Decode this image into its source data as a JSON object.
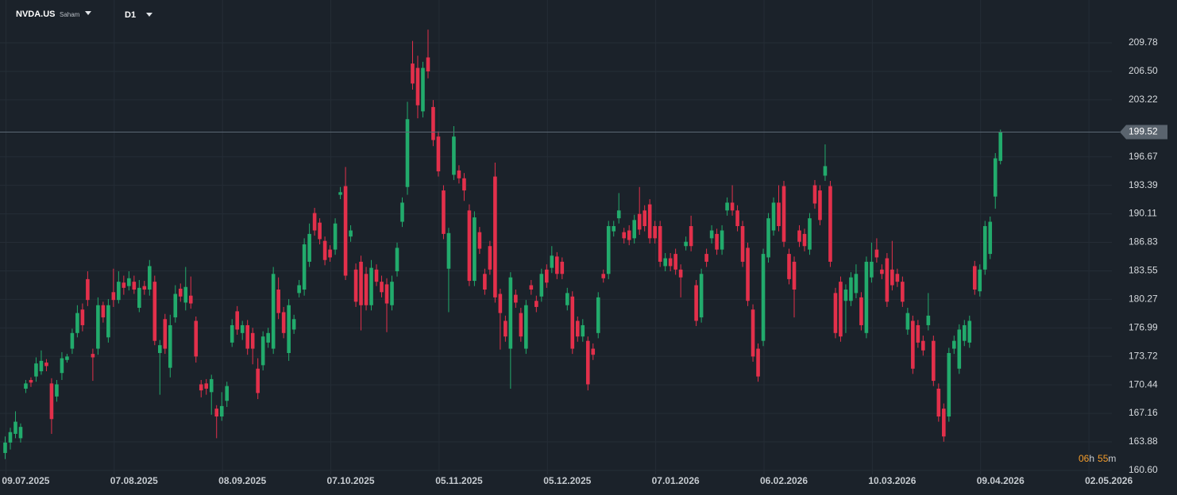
{
  "chart_data": {
    "type": "candlestick",
    "symbol": "NVDA.US",
    "asset_class": "Saham",
    "timeframe": "D1",
    "up_color": "#22ab6c",
    "down_color": "#e3304b",
    "grid": true,
    "current_price": 199.52,
    "countdown": [
      "06",
      "h",
      "55",
      "m"
    ],
    "ylim": [
      160.14,
      214.71
    ],
    "yticks": [
      {
        "value": 160.6,
        "label": "160.60"
      },
      163.88,
      167.16,
      170.44,
      173.72,
      176.99,
      180.27,
      183.55,
      186.83,
      190.11,
      193.39,
      196.67,
      203.22,
      {
        "value": 206.5,
        "label": "206.50"
      },
      209.78
    ],
    "xlim": [
      -1,
      214.6
    ],
    "xticks": [
      {
        "value": 4,
        "label": "09.07.2025"
      },
      {
        "value": 25,
        "label": "07.08.2025"
      },
      {
        "value": 46,
        "label": "08.09.2025"
      },
      {
        "value": 67,
        "label": "07.10.2025"
      },
      {
        "value": 88,
        "label": "05.11.2025"
      },
      {
        "value": 109,
        "label": "05.12.2025"
      },
      {
        "value": 130,
        "label": "07.01.2026"
      },
      {
        "value": 151,
        "label": "06.02.2026"
      },
      {
        "value": 172,
        "label": "10.03.2026"
      },
      {
        "value": 193,
        "label": "09.04.2026"
      },
      {
        "value": 214,
        "label": "02.05.2026"
      }
    ],
    "values": [
      [
        162.6,
        164.5,
        161.9,
        163.8
      ],
      [
        163.8,
        165.5,
        163.0,
        165.0
      ],
      [
        164.8,
        167.4,
        164.3,
        166.2
      ],
      [
        164.3,
        166.0,
        163.8,
        165.6
      ],
      [
        170.0,
        171.0,
        169.5,
        170.6
      ],
      [
        171.0,
        171.3,
        170.2,
        170.7
      ],
      [
        171.4,
        173.6,
        170.8,
        172.9
      ],
      [
        172.0,
        174.4,
        171.6,
        173.2
      ],
      [
        173.0,
        173.4,
        172.0,
        172.6
      ],
      [
        170.6,
        171.2,
        164.8,
        166.5
      ],
      [
        169.1,
        171.0,
        168.5,
        170.5
      ],
      [
        171.8,
        174.2,
        171.0,
        173.5
      ],
      [
        173.3,
        174.0,
        173.0,
        173.7
      ],
      [
        174.6,
        176.9,
        174.0,
        176.4
      ],
      [
        176.4,
        179.6,
        175.9,
        178.7
      ],
      [
        179.1,
        179.8,
        176.6,
        177.3
      ],
      [
        182.6,
        183.5,
        179.5,
        180.2
      ],
      [
        174.0,
        174.6,
        170.9,
        173.6
      ],
      [
        174.6,
        180.5,
        173.9,
        179.6
      ],
      [
        179.6,
        180.0,
        177.6,
        178.2
      ],
      [
        175.9,
        180.3,
        175.3,
        179.6
      ],
      [
        181.1,
        183.8,
        179.4,
        180.2
      ],
      [
        180.2,
        183.5,
        179.8,
        182.3
      ],
      [
        182.2,
        183.0,
        180.8,
        181.6
      ],
      [
        181.8,
        183.5,
        181.3,
        182.7
      ],
      [
        182.3,
        183.0,
        180.9,
        181.4
      ],
      [
        179.3,
        182.5,
        178.8,
        181.6
      ],
      [
        181.8,
        182.4,
        180.8,
        181.4
      ],
      [
        181.4,
        184.8,
        180.7,
        184.1
      ],
      [
        182.3,
        183.0,
        175.0,
        175.5
      ],
      [
        174.1,
        175.6,
        169.3,
        175.0
      ],
      [
        178.0,
        178.6,
        174.0,
        174.6
      ],
      [
        172.4,
        178.5,
        171.3,
        177.3
      ],
      [
        178.2,
        181.9,
        177.6,
        180.9
      ],
      [
        181.5,
        182.1,
        180.0,
        180.6
      ],
      [
        179.9,
        184.0,
        179.0,
        181.7
      ],
      [
        180.7,
        182.9,
        179.2,
        179.8
      ],
      [
        177.8,
        178.3,
        173.0,
        173.7
      ],
      [
        170.5,
        171.0,
        169.0,
        169.8
      ],
      [
        170.6,
        171.1,
        169.3,
        170.0
      ],
      [
        169.6,
        171.6,
        167.0,
        171.1
      ],
      [
        167.7,
        168.1,
        164.3,
        166.8
      ],
      [
        166.8,
        169.6,
        166.3,
        168.0
      ],
      [
        168.6,
        170.8,
        167.9,
        170.3
      ],
      [
        175.3,
        178.0,
        174.8,
        177.3
      ],
      [
        178.9,
        179.5,
        176.2,
        176.8
      ],
      [
        176.4,
        177.8,
        175.6,
        177.3
      ],
      [
        177.3,
        177.9,
        173.9,
        174.6
      ],
      [
        176.4,
        177.0,
        172.8,
        174.6
      ],
      [
        172.3,
        173.5,
        168.8,
        169.5
      ],
      [
        172.7,
        176.6,
        172.1,
        176.0
      ],
      [
        175.3,
        177.0,
        174.7,
        176.4
      ],
      [
        174.6,
        184.0,
        174.0,
        183.2
      ],
      [
        181.4,
        182.8,
        178.0,
        178.7
      ],
      [
        178.8,
        179.4,
        175.8,
        176.4
      ],
      [
        174.1,
        180.3,
        173.2,
        179.6
      ],
      [
        176.8,
        178.5,
        176.3,
        178.0
      ],
      [
        181.0,
        182.5,
        180.5,
        181.9
      ],
      [
        181.4,
        187.3,
        180.7,
        186.6
      ],
      [
        184.6,
        189.0,
        184.0,
        187.8
      ],
      [
        190.2,
        190.8,
        187.6,
        188.2
      ],
      [
        189.1,
        189.6,
        186.6,
        187.2
      ],
      [
        187.0,
        187.5,
        184.2,
        184.8
      ],
      [
        186.0,
        186.5,
        184.6,
        185.1
      ],
      [
        186.0,
        189.6,
        185.4,
        189.0
      ],
      [
        192.3,
        193.2,
        191.8,
        192.6
      ],
      [
        193.3,
        195.5,
        182.5,
        183.0
      ],
      [
        187.5,
        188.8,
        186.9,
        188.2
      ],
      [
        183.7,
        184.4,
        179.4,
        180.0
      ],
      [
        184.6,
        185.3,
        176.7,
        179.6
      ],
      [
        183.2,
        184.0,
        179.0,
        179.6
      ],
      [
        179.6,
        184.8,
        179.0,
        183.9
      ],
      [
        183.7,
        184.3,
        181.8,
        182.3
      ],
      [
        182.3,
        183.0,
        180.5,
        181.1
      ],
      [
        182.0,
        182.7,
        176.5,
        179.8
      ],
      [
        179.6,
        183.0,
        179.0,
        182.3
      ],
      [
        183.5,
        186.8,
        182.9,
        186.2
      ],
      [
        189.2,
        192.0,
        188.6,
        191.4
      ],
      [
        193.2,
        203.0,
        192.3,
        201.0
      ],
      [
        207.4,
        210.0,
        204.4,
        205.1
      ],
      [
        206.9,
        208.3,
        201.1,
        202.6
      ],
      [
        201.9,
        207.6,
        201.2,
        206.9
      ],
      [
        208.1,
        211.3,
        205.7,
        206.5
      ],
      [
        202.4,
        203.2,
        197.9,
        198.6
      ],
      [
        199.0,
        199.6,
        194.4,
        195.0
      ],
      [
        192.8,
        193.4,
        187.2,
        187.8
      ],
      [
        183.8,
        188.5,
        178.8,
        187.9
      ],
      [
        194.6,
        200.2,
        194.0,
        199.0
      ],
      [
        195.1,
        195.7,
        193.6,
        194.2
      ],
      [
        194.2,
        194.8,
        191.6,
        192.8
      ],
      [
        190.5,
        191.2,
        181.8,
        182.4
      ],
      [
        182.4,
        190.4,
        181.8,
        189.7
      ],
      [
        188.0,
        188.6,
        185.5,
        186.1
      ],
      [
        183.2,
        183.8,
        180.8,
        181.4
      ],
      [
        186.4,
        187.0,
        183.1,
        183.7
      ],
      [
        194.4,
        196.0,
        179.9,
        180.5
      ],
      [
        180.9,
        181.5,
        174.5,
        178.7
      ],
      [
        177.8,
        178.4,
        175.4,
        176.0
      ],
      [
        174.6,
        183.4,
        170.0,
        182.8
      ],
      [
        180.8,
        181.4,
        179.3,
        179.9
      ],
      [
        178.7,
        179.3,
        175.4,
        176.0
      ],
      [
        174.6,
        180.2,
        174.0,
        179.6
      ],
      [
        181.9,
        182.5,
        180.8,
        181.4
      ],
      [
        180.1,
        180.7,
        178.8,
        179.4
      ],
      [
        180.6,
        183.8,
        180.0,
        183.2
      ],
      [
        183.7,
        184.3,
        181.6,
        182.2
      ],
      [
        183.9,
        186.4,
        183.3,
        185.3
      ],
      [
        185.2,
        185.7,
        182.6,
        183.2
      ],
      [
        184.6,
        185.1,
        182.6,
        183.2
      ],
      [
        179.6,
        181.6,
        179.0,
        181.0
      ],
      [
        180.6,
        181.2,
        174.0,
        174.6
      ],
      [
        177.8,
        178.3,
        175.4,
        176.0
      ],
      [
        176.0,
        178.0,
        175.4,
        177.3
      ],
      [
        175.5,
        176.0,
        169.8,
        170.5
      ],
      [
        174.6,
        175.2,
        173.3,
        173.9
      ],
      [
        176.4,
        181.1,
        175.8,
        180.5
      ],
      [
        183.2,
        183.7,
        182.2,
        182.7
      ],
      [
        183.2,
        189.3,
        182.6,
        188.7
      ],
      [
        188.1,
        189.3,
        187.5,
        188.7
      ],
      [
        189.6,
        192.5,
        189.0,
        190.5
      ],
      [
        188.0,
        188.5,
        186.7,
        187.3
      ],
      [
        188.2,
        188.8,
        186.5,
        187.1
      ],
      [
        187.3,
        190.0,
        186.7,
        189.4
      ],
      [
        190.1,
        193.2,
        187.7,
        188.3
      ],
      [
        190.5,
        191.1,
        188.1,
        188.7
      ],
      [
        191.2,
        191.8,
        186.7,
        187.3
      ],
      [
        188.7,
        189.3,
        186.7,
        187.3
      ],
      [
        188.7,
        189.3,
        184.0,
        184.6
      ],
      [
        184.1,
        185.6,
        183.5,
        185.0
      ],
      [
        185.0,
        185.6,
        183.5,
        184.1
      ],
      [
        185.5,
        186.1,
        183.1,
        183.7
      ],
      [
        183.7,
        184.3,
        180.5,
        182.8
      ],
      [
        186.4,
        187.5,
        185.9,
        186.9
      ],
      [
        188.7,
        189.9,
        185.8,
        186.4
      ],
      [
        181.9,
        182.5,
        177.2,
        177.8
      ],
      [
        178.2,
        183.8,
        177.6,
        183.2
      ],
      [
        185.5,
        186.1,
        184.0,
        184.6
      ],
      [
        187.3,
        188.8,
        186.7,
        188.2
      ],
      [
        187.8,
        188.4,
        185.4,
        186.0
      ],
      [
        186.0,
        188.8,
        185.4,
        188.2
      ],
      [
        190.5,
        192.0,
        189.9,
        191.4
      ],
      [
        191.4,
        193.4,
        189.9,
        190.5
      ],
      [
        190.5,
        191.1,
        188.1,
        188.7
      ],
      [
        188.7,
        189.3,
        184.0,
        184.6
      ],
      [
        186.2,
        186.8,
        179.5,
        180.1
      ],
      [
        179.1,
        179.7,
        173.1,
        173.7
      ],
      [
        174.6,
        175.2,
        170.8,
        171.4
      ],
      [
        175.5,
        186.1,
        174.9,
        185.5
      ],
      [
        185.1,
        190.2,
        184.5,
        189.6
      ],
      [
        188.2,
        192.0,
        187.6,
        191.4
      ],
      [
        191.4,
        193.4,
        188.1,
        188.7
      ],
      [
        193.3,
        193.9,
        186.3,
        186.9
      ],
      [
        185.5,
        186.1,
        182.0,
        182.6
      ],
      [
        184.6,
        185.2,
        178.2,
        181.4
      ],
      [
        188.2,
        188.8,
        186.3,
        186.9
      ],
      [
        187.8,
        188.4,
        185.8,
        186.4
      ],
      [
        186.0,
        190.2,
        185.4,
        189.6
      ],
      [
        193.4,
        194.0,
        190.7,
        191.3
      ],
      [
        192.8,
        193.4,
        188.8,
        189.4
      ],
      [
        194.5,
        198.1,
        193.9,
        195.6
      ],
      [
        193.3,
        193.9,
        184.0,
        184.6
      ],
      [
        181.0,
        181.6,
        175.8,
        176.4
      ],
      [
        182.3,
        182.9,
        175.4,
        176.0
      ],
      [
        180.1,
        182.0,
        176.4,
        181.4
      ],
      [
        180.1,
        183.4,
        179.5,
        182.8
      ],
      [
        181.0,
        184.3,
        180.4,
        183.2
      ],
      [
        180.5,
        181.1,
        176.7,
        177.3
      ],
      [
        176.4,
        185.2,
        175.8,
        184.6
      ],
      [
        182.8,
        186.8,
        182.2,
        184.6
      ],
      [
        186.0,
        187.3,
        184.5,
        185.1
      ],
      [
        183.7,
        184.3,
        182.6,
        183.2
      ],
      [
        185.0,
        185.6,
        179.4,
        180.0
      ],
      [
        183.7,
        187.0,
        181.3,
        181.9
      ],
      [
        183.2,
        183.8,
        181.7,
        182.3
      ],
      [
        182.3,
        182.9,
        179.4,
        180.0
      ],
      [
        176.8,
        179.3,
        176.2,
        178.7
      ],
      [
        177.8,
        178.4,
        171.7,
        172.3
      ],
      [
        177.3,
        177.9,
        174.7,
        175.3
      ],
      [
        175.5,
        176.1,
        173.8,
        174.4
      ],
      [
        177.3,
        181.0,
        176.7,
        178.4
      ],
      [
        175.5,
        176.1,
        170.3,
        170.9
      ],
      [
        170.0,
        170.6,
        166.2,
        166.8
      ],
      [
        167.7,
        168.3,
        163.9,
        164.5
      ],
      [
        166.8,
        174.7,
        166.2,
        174.1
      ],
      [
        174.6,
        176.1,
        174.0,
        175.5
      ],
      [
        172.3,
        177.4,
        171.7,
        176.8
      ],
      [
        175.5,
        177.9,
        174.9,
        177.3
      ],
      [
        175.3,
        178.4,
        174.7,
        177.8
      ],
      [
        184.1,
        184.7,
        180.8,
        181.4
      ],
      [
        181.2,
        184.3,
        180.6,
        183.7
      ],
      [
        183.7,
        189.3,
        183.1,
        188.7
      ],
      [
        185.5,
        189.8,
        184.9,
        189.2
      ],
      [
        192.1,
        197.1,
        190.7,
        196.5
      ],
      [
        196.2,
        199.8,
        195.8,
        199.52
      ]
    ]
  }
}
